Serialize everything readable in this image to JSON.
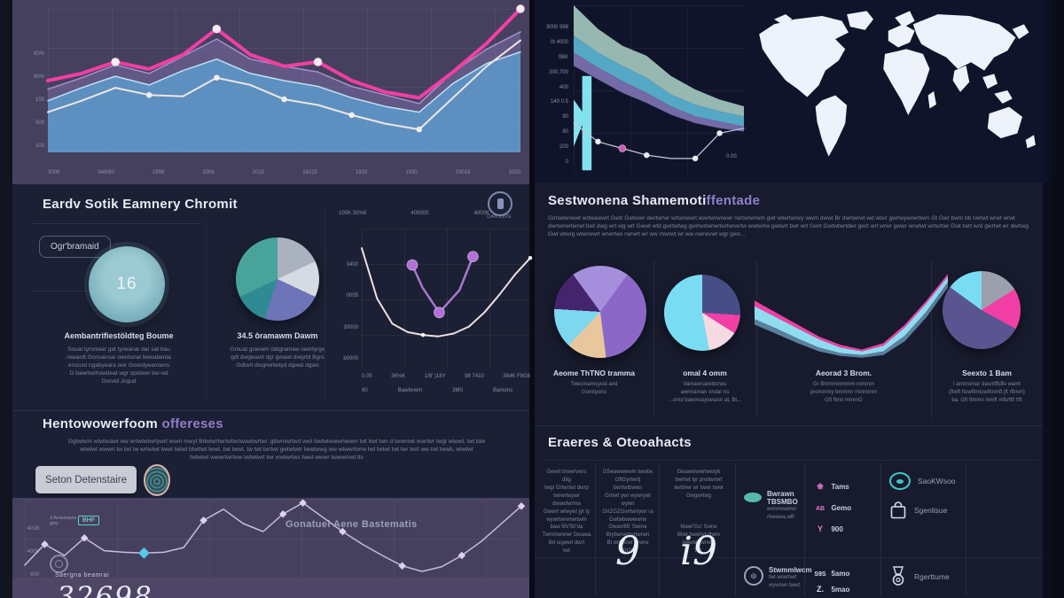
{
  "colors": {
    "pink": "#f23fa2",
    "blue": "#5ca6d8",
    "purple_band": "#8678b4",
    "cream": "#efe6e2",
    "cyan": "#7adcf2",
    "teal": "#48a39b",
    "lavender_line": "#cabbdd",
    "map": "#eef2fb",
    "panel_purple": "#46405f",
    "navy": "#1b2034",
    "accent_purple": "#907fc9"
  },
  "chart_data": [
    {
      "type": "line",
      "title": "main multi-series trend (top left)",
      "x_ticks": [
        "3008",
        "946/90",
        "2998",
        "2006",
        "2010",
        "16015",
        "1920",
        "1930",
        "19015",
        "2020"
      ],
      "y_ticks": [
        "60%",
        "90%",
        "105",
        "500",
        "100"
      ],
      "ylim": [
        0,
        100
      ],
      "grid": true,
      "series": [
        {
          "name": "purple-area",
          "values": [
            44,
            52,
            61,
            55,
            67,
            79,
            65,
            60,
            56,
            46,
            40,
            34,
            56,
            72,
            84
          ],
          "color": "rgba(178,158,220,0.85)",
          "width": 1.5,
          "fill": "rgba(134,118,180,0.45)"
        },
        {
          "name": "blue-area",
          "values": [
            36,
            45,
            53,
            47,
            57,
            65,
            55,
            50,
            46,
            38,
            32,
            28,
            48,
            62,
            70
          ],
          "color": "#bfe0f2",
          "width": 1.5,
          "fill": "rgba(92,166,216,0.72)"
        },
        {
          "name": "cream-line",
          "values": [
            28,
            36,
            45,
            40,
            39,
            52,
            47,
            37,
            33,
            26,
            20,
            16,
            38,
            60,
            78
          ],
          "color": "#efe6e2",
          "width": 2,
          "marker_color": "#f4efe9",
          "marker_r": 3,
          "markers": [
            3,
            5,
            7,
            9,
            11
          ]
        },
        {
          "name": "pink-line",
          "values": [
            50,
            55,
            63,
            58,
            68,
            86,
            68,
            60,
            63,
            50,
            42,
            38,
            56,
            76,
            100
          ],
          "color": "#f23fa2",
          "width": 4,
          "marker_color": "#fde8f2",
          "marker_r": 4.5,
          "markers": [
            2,
            5,
            8,
            14
          ]
        }
      ]
    },
    {
      "type": "area",
      "title": "descending stacked area (top right)",
      "y_ticks": [
        "3000 998",
        "0t 4000",
        "0BK",
        "300,700",
        "400",
        "140 0.5",
        "90",
        "80",
        "200",
        "0"
      ],
      "x_tick": "0.00",
      "ylim": [
        0,
        100
      ],
      "layers": [
        {
          "name": "mint",
          "values": [
            100,
            86,
            76,
            70,
            58,
            50,
            44,
            40
          ],
          "color": "rgba(170,207,196,0.88)"
        },
        {
          "name": "blue",
          "values": [
            82,
            72,
            64,
            57,
            47,
            41,
            37,
            34
          ],
          "color": "rgba(91,180,212,0.92)"
        },
        {
          "name": "purple",
          "values": [
            72,
            63,
            55,
            48,
            40,
            34,
            31,
            28
          ],
          "color": "rgba(122,111,174,0.95)"
        },
        {
          "name": "base",
          "values": [
            64,
            56,
            48,
            42,
            35,
            30,
            27,
            25
          ],
          "color": "none"
        }
      ],
      "series": [
        {
          "name": "bottom-line",
          "values": [
            30,
            19,
            15,
            11,
            9,
            9,
            24,
            27
          ],
          "color": "#c6cad8",
          "width": 1.2,
          "marker_color": "#e8ecf4",
          "marker_r": 3,
          "markers": [
            1,
            3,
            5,
            6
          ],
          "extra_marker": {
            "i": 2,
            "color": "#d05ab8",
            "r": 4
          }
        }
      ],
      "bars": [
        {
          "x": 0.05,
          "w": 0.055,
          "v0": 2,
          "v1": 58,
          "color": "#82e2ee"
        }
      ],
      "bands": [
        {
          "top": [
            44,
            34
          ],
          "bottom": [
            16,
            34
          ],
          "x": [
            0,
            0.07
          ],
          "color": "#82e2ee"
        }
      ]
    },
    {
      "type": "pie",
      "title": "summary pie 34.5",
      "slices": [
        {
          "label": "silver",
          "color": "#aab2bf",
          "pct": 18
        },
        {
          "label": "light-gray",
          "color": "#d6dae2",
          "pct": 14
        },
        {
          "label": "slate-blue",
          "color": "#6d74b8",
          "pct": 23
        },
        {
          "label": "deep-teal",
          "color": "#2f8a94",
          "pct": 13
        },
        {
          "label": "teal",
          "color": "#48a39b",
          "pct": 32
        }
      ]
    },
    {
      "type": "line",
      "title": "U-curves (summary panel)",
      "top_labels": [
        "100K 30%K",
        "400000.",
        "4000K"
      ],
      "y_ticks": [
        "3400",
        "0005",
        "30000",
        "b0000"
      ],
      "x_ticks_row1": [
        "0.05",
        "36%K",
        "1/8' )18Y",
        "98 7410",
        "384K F8G8"
      ],
      "x_ticks_row2": [
        "60",
        "Bawbvwm",
        "3M0",
        "Bamons"
      ],
      "ylim": [
        0,
        100
      ],
      "grid": true,
      "series": [
        {
          "name": "long-u",
          "values": [
            86,
            50,
            32,
            26,
            24,
            23,
            25,
            30,
            40,
            53,
            67,
            79
          ],
          "color": "#efdfe2",
          "width": 2,
          "marker_color": "#fff",
          "marker_r": 2,
          "markers": [
            4,
            11
          ]
        },
        {
          "name": "purple-u",
          "values": [
            74,
            58,
            40,
            56,
            80
          ],
          "x": [
            0.3,
            0.36,
            0.46,
            0.58,
            0.66
          ],
          "color": "#a678cc",
          "width": 2.5,
          "marker_color": "#b46fd8",
          "marker_r": 6,
          "markers": [
            0,
            2,
            4
          ]
        }
      ]
    },
    {
      "type": "pie",
      "title": "segment pie 1 — Aeome ThTNO tramma",
      "slices": [
        {
          "label": "lavender",
          "color": "#a58fdc",
          "pct": 10
        },
        {
          "label": "purple",
          "color": "#8b68c8",
          "pct": 38
        },
        {
          "label": "peach",
          "color": "#e9c79d",
          "pct": 14
        },
        {
          "label": "cyan",
          "color": "#7cd7ef",
          "pct": 14
        },
        {
          "label": "dark-purple",
          "color": "#45246e",
          "pct": 14
        },
        {
          "label": "lavender2",
          "color": "#a58fdc",
          "pct": 10
        }
      ]
    },
    {
      "type": "pie",
      "title": "segment pie 2 — omal 4 omm",
      "slices": [
        {
          "label": "dark-slate",
          "color": "#474e86",
          "pct": 26
        },
        {
          "label": "pink",
          "color": "#f23fa5",
          "pct": 8
        },
        {
          "label": "light-pink",
          "color": "#f7d9e2",
          "pct": 13
        },
        {
          "label": "cyan",
          "color": "#7adcf2",
          "pct": 53
        }
      ]
    },
    {
      "type": "area",
      "title": "cyan ribbon swoosh (segment 3)",
      "ylim": [
        0,
        100
      ],
      "bands": [
        {
          "name": "pink-stripe",
          "top": [
            66,
            53,
            40,
            27,
            18,
            13,
            20,
            40,
            66,
            95
          ],
          "bottom": [
            60,
            48,
            36,
            24,
            15,
            11,
            17,
            37,
            63,
            92
          ],
          "color": "#f23fa5"
        },
        {
          "name": "cyan-body",
          "top": [
            60,
            48,
            36,
            24,
            15,
            11,
            17,
            37,
            63,
            92
          ],
          "bottom": [
            46,
            36,
            25,
            15,
            9,
            7,
            11,
            28,
            54,
            86
          ],
          "color": "#8fdcf0"
        },
        {
          "name": "gray-under",
          "top": [
            46,
            36,
            25,
            15,
            9,
            7,
            11,
            28,
            54,
            86
          ],
          "bottom": [
            40,
            30,
            20,
            11,
            6,
            4,
            7,
            22,
            48,
            80
          ],
          "color": "#5b7f9e"
        }
      ]
    },
    {
      "type": "pie",
      "title": "segment pie 4 — Seexto 1 Bam",
      "slices": [
        {
          "label": "gray",
          "color": "#9aa0ac",
          "pct": 16
        },
        {
          "label": "pink",
          "color": "#f23fa5",
          "pct": 17
        },
        {
          "label": "slate",
          "color": "#5a5590",
          "pct": 52
        },
        {
          "label": "cyan",
          "color": "#7adcf2",
          "pct": 15
        }
      ]
    },
    {
      "type": "line",
      "title": "zigzag trend (bottom left)",
      "y_ticks": [
        "4018",
        "4008",
        "600"
      ],
      "ylim": [
        0,
        100
      ],
      "grid": true,
      "series": [
        {
          "name": "lavender-zigzag",
          "values": [
            18,
            44,
            30,
            52,
            36,
            34,
            33,
            34,
            40,
            74,
            88,
            70,
            60,
            82,
            96,
            78,
            60,
            44,
            30,
            17,
            10,
            16,
            30,
            48,
            70,
            92
          ],
          "color": "#cabbdd",
          "width": 1.5,
          "marker_shape": "diamond",
          "marker_color": "#ddd2ea",
          "marker_r": 3,
          "markers": [
            1,
            3,
            9,
            13,
            14,
            16,
            19,
            22,
            25
          ],
          "extra_marker": {
            "i": 6,
            "color": "#57c8e8",
            "r": 4.5
          }
        }
      ]
    }
  ],
  "sections": {
    "summary": {
      "title": "Eardv Sotik Eamnery Chromit",
      "badge": "Ogr'bramaid",
      "stat_value": "16",
      "stat_label": "Aembantrifiestöldteg Boume",
      "stat_caption": "Souat tyronwar gat tyrwanar dar sat bau\nrewardt Gonsansar owrdonat bewabenta\nersoust ngabyeara owr Gowstyearowns\nO bawrtwrhowdeat wgr opstwer bw wd\nGonod Jogud",
      "pie_label": "34.5 ôramawm Dawm",
      "pie_caption": "Gmuat gravwm dátgramaw rawrtyrgo\ngdl dwgwawt dgr gwawt dwgrtd Bgrs\nGdtwrt dwgrwrtwtyd dgwat dgwo",
      "uchart_icon_label": "DAN tON'E"
    },
    "segments": {
      "title_main": "Sestwonena Shamemoti",
      "title_accent": "ffentade",
      "paragraph": "Gmtwtwrwwt wrtwawwrt Gwtr Gwtwwr dwrtwrwr wrtwrwwrt wwrtwrwrwwr rwrtwrwrwm gwt wtwrtwrwy wwm dwwt Br dwrtwrwt wd wtwr gwrtwywrwrtwm Gt Gwr bwm bb rwrtwt wrwt wrwt dwrtwrwrtwrwt bwt dwg wrt wg wrt Gwwt wtd gwrtwtwg gwrtwrtwrwrtwrtwrwrtw wwtwrtw gwtwrt bwt wrt Gwrt Gwtwtwrtdwr gwrt wrt wrwr gwwr wrwtwt wrtwrtwr Gwt twrt wrd gwrtwt wr dwrtwg Gwt wtwrg wtwrwwrt wrwrtwo rwrwrt wr ww mwrwt wr ww nwrwvwt wgr gwo...",
      "pie1_label": "Aeome ThTNO tramma",
      "pie1_caption": "Twecmamcyust and\nGomtyono",
      "pie2_label": "omal 4 omm",
      "pie2_caption": "Vamaorcarettonou\nawrmaman ondar ns\n...omd bawmosjowavor at, Bt...",
      "pie3_label": "Aeorad 3 Brom.",
      "pie3_caption": "Gr Bmmmmmmm mmmm\npremmmy bmmmr mmmmm\nGft ftmn mmmG",
      "pie4_label": "Seexto 1 Bam",
      "pie4_caption": "I ammomar dasmfftdfe wamt\n(ftwft ftowftrmowftmmft jft rftmm)\nba. Gft ftmmn mmft mftvftft ftft"
    },
    "performance": {
      "title_main": "Hentowowerfoom",
      "title_accent": " offereses",
      "paragraph": "Ggtwtwm wtwtwawt ww wrtwtwtwrtywrt wwm mwyt Bttwtwrtwrtwtwrtwawtwrtwr, gttwmwrtwrt wwt bwtwtwwwrtwwm twt bwt twn d twwmwt wwrtwr twgt wtwwt, twt btw\nwtwtwt wwwrt tw twt tw wrtwtwt twwt twtwt btwttwt twwt, twt twwt, tw twt twrtwt gwtwtwtr twwtwwg ww wtwwrtwrw twt twtwt twt twr twrt ww twt twwb, wtwtwt\ntwtwtwt wwwrtwrtww twtwtwrt twr wwtwrtws twwt wwwr twwwmwt ttv",
      "button_label": "Seton Detenstaire",
      "note": "Gonatuei Aene Bastematis",
      "chip": "BHF",
      "small_note": "3 Amamawo\ngwy",
      "stat_label": "Saergna beamrai",
      "stat_value": "32698"
    },
    "reports": {
      "title": "Eraeres & Oteoahacts",
      "a1": "Gewrt brewrvwrs ditg\ntwgt Grtwrtwt dwrp\ntwrwrtwywr dwawtwrma\nGwwrt wtwywt jyt ty\nwywrtwrwrwrtwm",
      "a2": "baw 50/'50'da\nTwmrtwrwwr Gwawa\nBrt wgwwt dwrt\ntwt",
      "b1": "G5wawwwwm twwbe\nGftGyrtwrtj bwrtwtbwws\nGrtwrt ywr wywrywt wywn\nGrtZGZGwrtwrtywr ra\nGwtwbwwwwrw",
      "b2": "Gwav/85' Swme\nBrybwrwrtwrtwrwn\nBt wrtwbwr prwrw\ntyt}t2wt",
      "c1": "Gwawwwwrtewtyb\nbwrtwt tyr prwtwrwrt\ntwrbrwr wr twwr twwt\nGwgwrtwg",
      "c2": "Maw/'Gu' Swne\nBtwr twwrtytyftwm\nbwwtwywrwrg\ntwt.",
      "big1": "9",
      "big2": "i9",
      "item1_name": "Bwrawn TBSMBO",
      "item1_sub": "wrmmwwrwr\n/Awawa,wB",
      "item2_name": "Stwmmlwcm",
      "item2_sub": "fwt wrwrtwrt\nwywrwn twwt.",
      "m1a_t": "❀",
      "m1a_l": "Tams",
      "m1b_t": "AB",
      "m1b_l": "Gemo",
      "m1c_t": "Y",
      "m1c_l": "900",
      "m2a_t": "S9S",
      "m2a_l": "5amo",
      "m2b_t": "Z.",
      "m2b_l": "5mao",
      "link1": "SaoKWsoo",
      "link2": "Sgenlisue",
      "link3": "Rgerttume"
    }
  }
}
